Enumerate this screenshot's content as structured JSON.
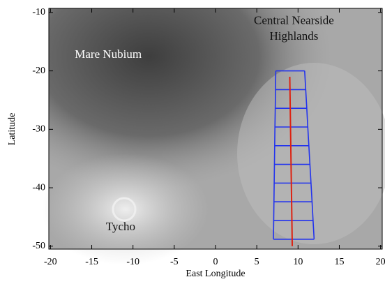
{
  "chart_data": {
    "type": "map",
    "xlabel": "East Longitude",
    "ylabel": "Latitude",
    "xlim": [
      -20.2,
      20.2
    ],
    "ylim": [
      -50.5,
      -9.3
    ],
    "xticks": [
      -20,
      -15,
      -10,
      -5,
      0,
      5,
      10,
      15,
      20
    ],
    "yticks": [
      -10,
      -20,
      -30,
      -40,
      -50
    ],
    "annotations": [
      {
        "text": "Mare Nubium",
        "x": -13,
        "y": -17.3
      },
      {
        "text": "Central Nearside",
        "x": 9.5,
        "y": -11.5
      },
      {
        "text": "Highlands",
        "x": 9.5,
        "y": -14.2
      },
      {
        "text": "Tycho",
        "x": -11.5,
        "y": -46.8
      }
    ],
    "ladder": {
      "color": "#2233ee",
      "lat": [
        -20,
        -23.2,
        -26.4,
        -29.6,
        -32.8,
        -36,
        -39.2,
        -42.4,
        -45.6,
        -48.8
      ],
      "lon_west": [
        7.3,
        7.27,
        7.24,
        7.2,
        7.17,
        7.14,
        7.11,
        7.08,
        7.05,
        7.02
      ],
      "lon_east": [
        10.8,
        10.93,
        11.06,
        11.18,
        11.31,
        11.44,
        11.57,
        11.7,
        11.82,
        11.95
      ]
    },
    "track": {
      "color": "#dd2211",
      "x": [
        9.0,
        9.3
      ],
      "y": [
        -21,
        -50
      ]
    }
  }
}
